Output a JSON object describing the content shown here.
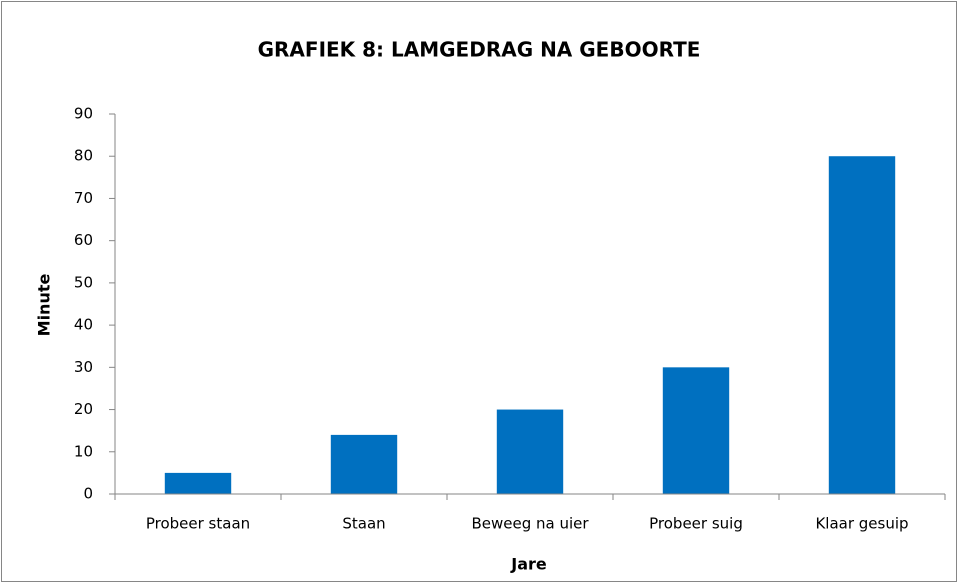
{
  "chart_data": {
    "type": "bar",
    "title": "GRAFIEK 8: LAMGEDRAG NA GEBOORTE",
    "x_label": "Jare",
    "y_label": "Minute",
    "categories": [
      "Probeer staan",
      "Staan",
      "Beweeg na uier",
      "Probeer suig",
      "Klaar gesuip"
    ],
    "values": [
      5,
      14,
      20,
      30,
      80
    ],
    "color": "#0070c0",
    "ylim": [
      0,
      90
    ],
    "yticks": [
      0,
      10,
      20,
      30,
      40,
      50,
      60,
      70,
      80,
      90
    ],
    "grid": false
  }
}
